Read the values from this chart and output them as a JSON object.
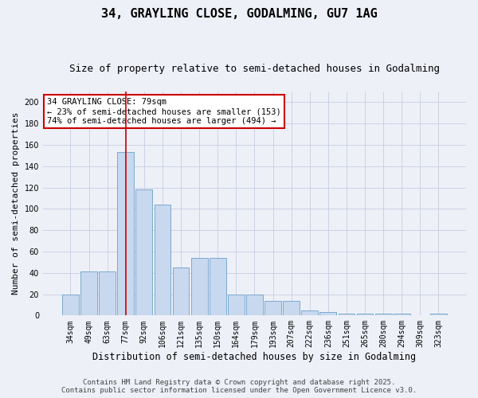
{
  "title_line1": "34, GRAYLING CLOSE, GODALMING, GU7 1AG",
  "title_line2": "Size of property relative to semi-detached houses in Godalming",
  "xlabel": "Distribution of semi-detached houses by size in Godalming",
  "ylabel": "Number of semi-detached properties",
  "categories": [
    "34sqm",
    "49sqm",
    "63sqm",
    "77sqm",
    "92sqm",
    "106sqm",
    "121sqm",
    "135sqm",
    "150sqm",
    "164sqm",
    "179sqm",
    "193sqm",
    "207sqm",
    "222sqm",
    "236sqm",
    "251sqm",
    "265sqm",
    "280sqm",
    "294sqm",
    "309sqm",
    "323sqm"
  ],
  "values": [
    20,
    41,
    41,
    153,
    118,
    104,
    45,
    54,
    54,
    20,
    20,
    14,
    14,
    5,
    3,
    2,
    2,
    2,
    2,
    0,
    2
  ],
  "bar_color": "#c8d8ee",
  "bar_edge_color": "#7aaad0",
  "subject_bar_index": 3,
  "subject_line_color": "#cc0000",
  "annotation_text": "34 GRAYLING CLOSE: 79sqm\n← 23% of semi-detached houses are smaller (153)\n74% of semi-detached houses are larger (494) →",
  "annotation_box_color": "#ffffff",
  "annotation_box_edge_color": "#cc0000",
  "ylim": [
    0,
    210
  ],
  "yticks": [
    0,
    20,
    40,
    60,
    80,
    100,
    120,
    140,
    160,
    180,
    200
  ],
  "footer_line1": "Contains HM Land Registry data © Crown copyright and database right 2025.",
  "footer_line2": "Contains public sector information licensed under the Open Government Licence v3.0.",
  "background_color": "#eef0f8",
  "plot_bg_color": "#eef0f8",
  "grid_color": "#c8cce0",
  "title_fontsize": 11,
  "subtitle_fontsize": 9,
  "tick_fontsize": 7,
  "ylabel_fontsize": 8,
  "xlabel_fontsize": 8.5,
  "footer_fontsize": 6.5,
  "annotation_fontsize": 7.5
}
